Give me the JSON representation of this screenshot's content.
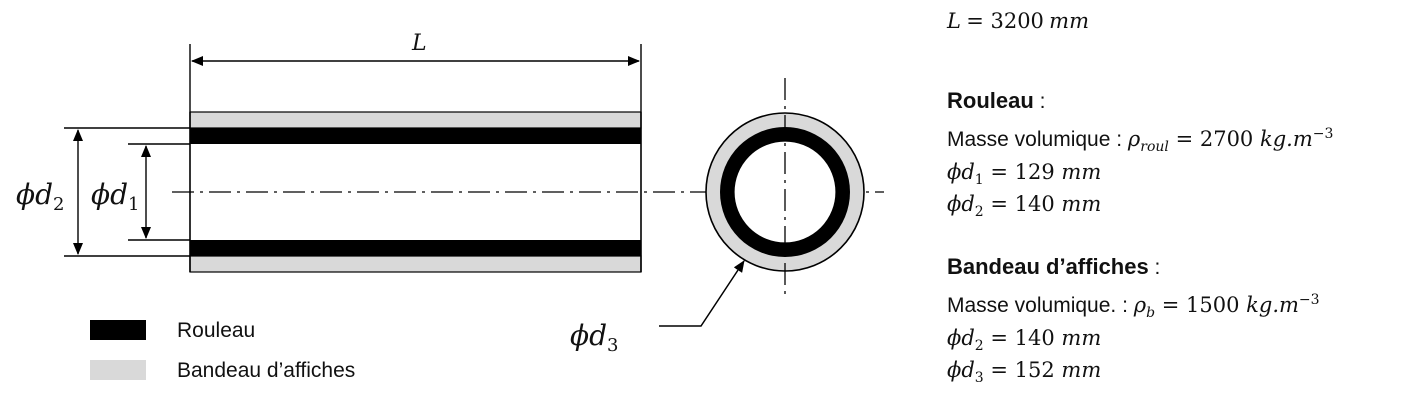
{
  "drawing": {
    "length_label": "L",
    "d1_label_sym": "ϕd",
    "d1_label_sub": "1",
    "d2_label_sym": "ϕd",
    "d2_label_sub": "2",
    "d3_label_sym": "ϕd",
    "d3_label_sub": "3",
    "colors": {
      "rouleau": "#000000",
      "bandeau": "#d9d9d9",
      "line": "#000000"
    }
  },
  "legend": [
    {
      "label": "Rouleau",
      "color": "#000000"
    },
    {
      "label": "Bandeau d’affiches",
      "color": "#d9d9d9"
    }
  ],
  "specs": {
    "length": {
      "sym": "L",
      "eq": "= 3200",
      "unit": "mm"
    },
    "rouleau": {
      "heading": "Rouleau",
      "colon": " :",
      "density_label": "Masse volumique : ",
      "density_sym": "ρ",
      "density_sub": "roul",
      "density_eq": " = 2700 ",
      "density_unit": "kg.m",
      "density_exp": "−3",
      "d1_sym": "ϕd",
      "d1_sub": "1",
      "d1_eq": " = 129 ",
      "d1_unit": "mm",
      "d2_sym": "ϕd",
      "d2_sub": "2",
      "d2_eq": " = 140 ",
      "d2_unit": "mm"
    },
    "bandeau": {
      "heading": "Bandeau d’affiches",
      "colon": " :",
      "density_label": "Masse volumique. : ",
      "density_sym": "ρ",
      "density_sub": "b",
      "density_eq": " = 1500 ",
      "density_unit": "kg.m",
      "density_exp": "−3",
      "d2_sym": "ϕd",
      "d2_sub": "2",
      "d2_eq": " = 140 ",
      "d2_unit": "mm",
      "d3_sym": "ϕd",
      "d3_sub": "3",
      "d3_eq": " = 152 ",
      "d3_unit": "mm"
    }
  }
}
